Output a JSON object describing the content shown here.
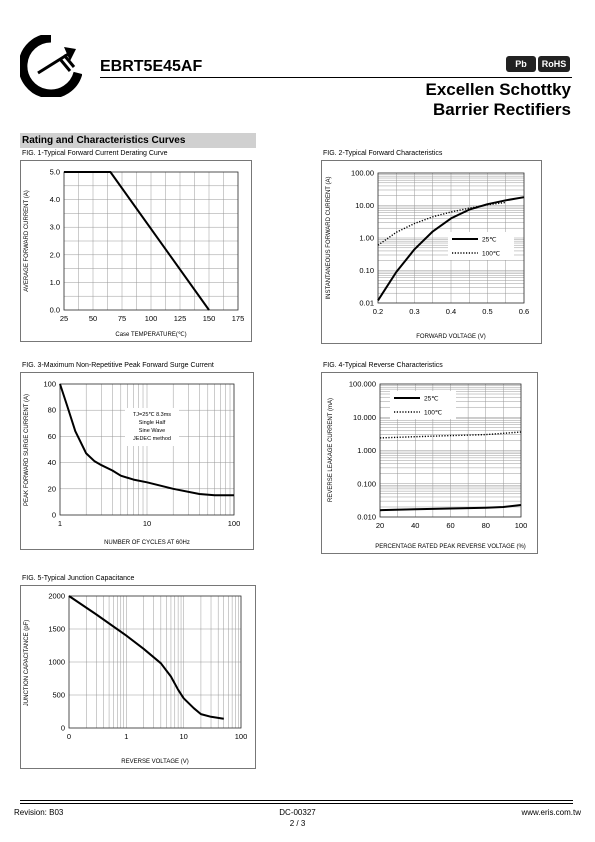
{
  "header": {
    "part_number": "EBRT5E45AF",
    "title_line1": "Excellen Schottky",
    "title_line2": "Barrier Rectifiers",
    "badge_pb": "Pb",
    "badge_rohs": "RoHS"
  },
  "section_title": "Rating and Characteristics Curves",
  "footer": {
    "revision": "Revision: B03",
    "doc_number": "DC-00327",
    "page": "2 / 3",
    "website": "www.eris.com.tw"
  },
  "chart_data": [
    {
      "id": "fig1",
      "type": "line",
      "title": "FIG. 1-Typical Forward Current Derating Curve",
      "xlabel": "Case TEMPERATURE(℃)",
      "ylabel": "AVERAGE FORWARD CURRENT (A)",
      "xlim": [
        25,
        175
      ],
      "ylim": [
        0,
        5
      ],
      "xticks": [
        "25",
        "50",
        "75",
        "100",
        "125",
        "150",
        "175"
      ],
      "yticks": [
        "0.0",
        "1.0",
        "2.0",
        "3.0",
        "4.0",
        "5.0"
      ],
      "grid": true,
      "series": [
        {
          "x": [
            25,
            65,
            150
          ],
          "y": [
            5.0,
            5.0,
            0.0
          ]
        }
      ]
    },
    {
      "id": "fig2",
      "type": "line",
      "title": "FIG. 2-Typical Forward Characteristics",
      "xlabel": "FORWARD VOLTAGE (V)",
      "ylabel": "INSTANTANEOUS FORWARD CURRENT (A)",
      "xlim": [
        0.2,
        0.6
      ],
      "ylim": [
        0.01,
        100
      ],
      "yscale": "log",
      "xticks": [
        "0.2",
        "0.3",
        "0.4",
        "0.5",
        "0.6"
      ],
      "yticks": [
        "0.01",
        "0.10",
        "1.00",
        "10.00",
        "100.00"
      ],
      "legend": "right",
      "series": [
        {
          "name": "25℃",
          "style": "solid",
          "x": [
            0.2,
            0.25,
            0.3,
            0.35,
            0.4,
            0.45,
            0.5,
            0.55,
            0.6
          ],
          "y": [
            0.012,
            0.09,
            0.45,
            1.6,
            4.0,
            7.5,
            11.0,
            14.5,
            18.0
          ]
        },
        {
          "name": "100℃",
          "style": "dotted",
          "x": [
            0.2,
            0.25,
            0.3,
            0.35,
            0.4,
            0.45,
            0.5,
            0.55
          ],
          "y": [
            0.6,
            1.5,
            2.8,
            4.5,
            6.3,
            8.3,
            10.5,
            12.5
          ]
        }
      ]
    },
    {
      "id": "fig3",
      "type": "line",
      "title": "FIG. 3-Maximum Non-Repetitive Peak Forward Surge Current",
      "xlabel": "NUMBER OF CYCLES AT 60Hz",
      "ylabel": "PEAK FORWARD SURGE CURRENT (A)",
      "xlim": [
        1,
        100
      ],
      "ylim": [
        0,
        100
      ],
      "xscale": "log",
      "xticks": [
        "1",
        "10",
        "100"
      ],
      "yticks": [
        "0",
        "20",
        "40",
        "60",
        "80",
        "100"
      ],
      "annotation": [
        "TJ=25℃ 8.3ms",
        "Single Half",
        "Sine Wave",
        "JEDEC method"
      ],
      "series": [
        {
          "x": [
            1,
            1.2,
            1.5,
            2,
            2.5,
            3,
            4,
            5,
            7,
            10,
            20,
            40,
            60,
            100
          ],
          "y": [
            100,
            84,
            64,
            47,
            41,
            38,
            34,
            30,
            27,
            25,
            20,
            16,
            15,
            15
          ]
        }
      ]
    },
    {
      "id": "fig4",
      "type": "line",
      "title": "FIG. 4-Typical Reverse Characteristics",
      "xlabel": "PERCENTAGE RATED PEAK REVERSE VOLTAGE (%)",
      "ylabel": "REVERSE LEAKAGE CURRENT (mA)",
      "xlim": [
        20,
        100
      ],
      "ylim": [
        0.01,
        100
      ],
      "yscale": "log",
      "xticks": [
        "20",
        "40",
        "60",
        "80",
        "100"
      ],
      "yticks": [
        "0.010",
        "0.100",
        "1.000",
        "10.000",
        "100.000"
      ],
      "legend": "top-left",
      "series": [
        {
          "name": "25℃",
          "style": "solid",
          "x": [
            20,
            40,
            60,
            80,
            90,
            100
          ],
          "y": [
            0.016,
            0.017,
            0.018,
            0.019,
            0.02,
            0.023
          ]
        },
        {
          "name": "100℃",
          "style": "dotted",
          "x": [
            20,
            40,
            60,
            80,
            100
          ],
          "y": [
            2.4,
            2.6,
            2.8,
            3.0,
            3.6
          ]
        }
      ]
    },
    {
      "id": "fig5",
      "type": "line",
      "title": "FIG. 5-Typical Junction Capacitance",
      "xlabel": "REVERSE VOLTAGE (V)",
      "ylabel": "JUNCTION CAPACITANCE (pF)",
      "xlim": [
        0.1,
        100
      ],
      "ylim": [
        0,
        2000
      ],
      "xscale": "log",
      "xticks": [
        "0",
        "1",
        "10",
        "100"
      ],
      "yticks": [
        "0",
        "500",
        "1000",
        "1500",
        "2000"
      ],
      "series": [
        {
          "x": [
            0.1,
            0.3,
            1,
            2,
            4,
            6,
            8,
            10,
            15,
            20,
            30,
            50
          ],
          "y": [
            2000,
            1720,
            1400,
            1200,
            980,
            780,
            580,
            450,
            300,
            210,
            170,
            140
          ]
        }
      ]
    }
  ]
}
